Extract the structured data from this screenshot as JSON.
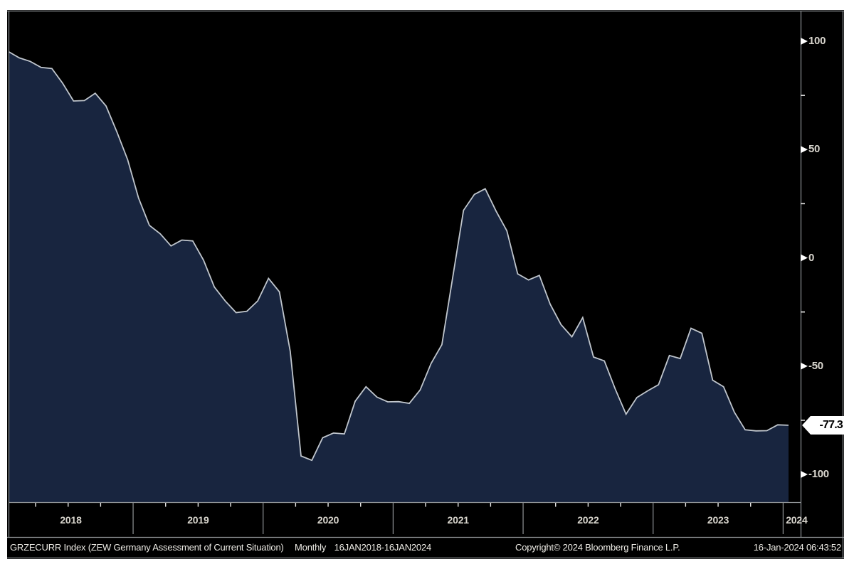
{
  "chart_data": {
    "type": "area",
    "title": "ZEW Germany Assessment of Current Situation",
    "ticker": "GRZECURR Index",
    "x_axis": {
      "unit": "month",
      "start": "16JAN2018",
      "end": "16JAN2024",
      "points": 73,
      "year_labels": [
        "2018",
        "2019",
        "2020",
        "2021",
        "2022",
        "2023",
        "2024"
      ]
    },
    "values": [
      95.2,
      92.3,
      90.7,
      87.9,
      87.4,
      80.6,
      72.4,
      72.6,
      76.0,
      70.1,
      58.2,
      45.3,
      27.6,
      15.0,
      11.1,
      5.5,
      8.2,
      7.8,
      -1.1,
      -13.5,
      -19.9,
      -25.3,
      -24.7,
      -19.9,
      -9.5,
      -15.7,
      -43.1,
      -91.5,
      -93.5,
      -83.1,
      -80.9,
      -81.3,
      -66.2,
      -59.5,
      -64.3,
      -66.5,
      -66.4,
      -67.2,
      -61.0,
      -48.8,
      -40.1,
      -9.1,
      21.9,
      29.3,
      31.9,
      21.6,
      12.5,
      -7.4,
      -10.2,
      -8.1,
      -21.4,
      -30.8,
      -36.5,
      -27.6,
      -45.8,
      -47.6,
      -60.5,
      -72.2,
      -64.5,
      -61.4,
      -58.6,
      -45.1,
      -46.5,
      -32.5,
      -34.8,
      -56.5,
      -59.5,
      -71.3,
      -79.4,
      -79.9,
      -79.8,
      -77.1,
      -77.3
    ],
    "y_ticks": [
      100,
      50,
      0,
      -50,
      -100
    ],
    "y_tick_labels": [
      "100",
      "50",
      "0",
      "-50",
      "-100"
    ],
    "y_minor_ticks": [
      75,
      25,
      -25,
      -75
    ],
    "ylim": [
      -113,
      114
    ],
    "grid": "none",
    "legend": "none",
    "last_value": -77.3,
    "last_value_label": "-77.3",
    "colors": {
      "background": "#000000",
      "area_fill": "#18253f",
      "line": "#c0c6cd",
      "frame": "#8f9396",
      "tick": "#e8e8e8",
      "axis_label": "#d9d6ce",
      "badge_bg": "#ffffff",
      "badge_text": "#000000"
    }
  },
  "footer": {
    "instrument": "GRZECURR Index (ZEW Germany Assessment of Current Situation)",
    "periodicity": "Monthly",
    "range": "16JAN2018-16JAN2024",
    "copyright": "Copyright© 2024 Bloomberg Finance L.P.",
    "timestamp": "16-Jan-2024 06:43:52"
  }
}
